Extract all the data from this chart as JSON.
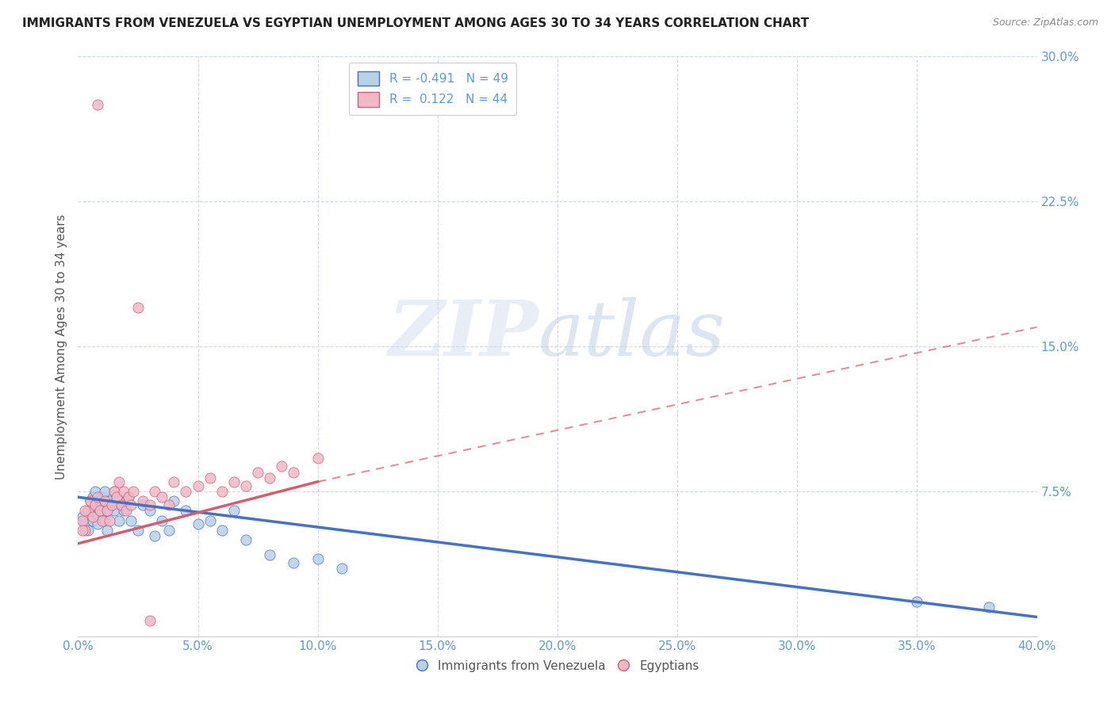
{
  "title": "IMMIGRANTS FROM VENEZUELA VS EGYPTIAN UNEMPLOYMENT AMONG AGES 30 TO 34 YEARS CORRELATION CHART",
  "source": "Source: ZipAtlas.com",
  "ylabel": "Unemployment Among Ages 30 to 34 years",
  "xlabel_ticks": [
    "0.0%",
    "5.0%",
    "10.0%",
    "15.0%",
    "20.0%",
    "25.0%",
    "30.0%",
    "35.0%",
    "40.0%"
  ],
  "xlabel_vals": [
    0.0,
    0.05,
    0.1,
    0.15,
    0.2,
    0.25,
    0.3,
    0.35,
    0.4
  ],
  "ylabel_ticks_right": [
    "7.5%",
    "15.0%",
    "22.5%",
    "30.0%"
  ],
  "ylabel_vals_right": [
    0.075,
    0.15,
    0.225,
    0.3
  ],
  "xlim": [
    0.0,
    0.4
  ],
  "ylim": [
    0.0,
    0.3
  ],
  "legend_blue_r": "-0.491",
  "legend_blue_n": "49",
  "legend_pink_r": "0.122",
  "legend_pink_n": "44",
  "blue_color": "#b8d0e8",
  "pink_color": "#f0b8c8",
  "blue_line_color": "#4472c4",
  "pink_line_color": "#d06070",
  "axis_color": "#5b9bd5",
  "grid_color": "#d0d8e8",
  "blue_scatter_x": [
    0.002,
    0.003,
    0.004,
    0.005,
    0.005,
    0.006,
    0.006,
    0.007,
    0.007,
    0.008,
    0.008,
    0.009,
    0.009,
    0.01,
    0.01,
    0.011,
    0.011,
    0.012,
    0.012,
    0.013,
    0.014,
    0.015,
    0.015,
    0.016,
    0.017,
    0.018,
    0.019,
    0.02,
    0.021,
    0.022,
    0.025,
    0.027,
    0.03,
    0.032,
    0.035,
    0.038,
    0.04,
    0.045,
    0.05,
    0.055,
    0.06,
    0.065,
    0.07,
    0.08,
    0.09,
    0.1,
    0.11,
    0.35,
    0.38
  ],
  "blue_scatter_y": [
    0.062,
    0.058,
    0.055,
    0.065,
    0.07,
    0.072,
    0.06,
    0.068,
    0.075,
    0.063,
    0.058,
    0.07,
    0.065,
    0.072,
    0.068,
    0.075,
    0.06,
    0.065,
    0.055,
    0.07,
    0.068,
    0.075,
    0.065,
    0.072,
    0.06,
    0.068,
    0.065,
    0.07,
    0.072,
    0.06,
    0.055,
    0.068,
    0.065,
    0.052,
    0.06,
    0.055,
    0.07,
    0.065,
    0.058,
    0.06,
    0.055,
    0.065,
    0.05,
    0.042,
    0.038,
    0.04,
    0.035,
    0.018,
    0.015
  ],
  "pink_scatter_x": [
    0.002,
    0.003,
    0.004,
    0.005,
    0.006,
    0.007,
    0.008,
    0.008,
    0.009,
    0.01,
    0.011,
    0.012,
    0.013,
    0.014,
    0.015,
    0.016,
    0.017,
    0.018,
    0.019,
    0.02,
    0.021,
    0.022,
    0.023,
    0.025,
    0.027,
    0.03,
    0.032,
    0.035,
    0.038,
    0.04,
    0.045,
    0.05,
    0.055,
    0.06,
    0.065,
    0.07,
    0.075,
    0.08,
    0.085,
    0.09,
    0.1,
    0.002,
    0.003,
    0.03
  ],
  "pink_scatter_y": [
    0.06,
    0.055,
    0.065,
    0.07,
    0.062,
    0.068,
    0.275,
    0.072,
    0.065,
    0.06,
    0.07,
    0.065,
    0.06,
    0.068,
    0.075,
    0.072,
    0.08,
    0.068,
    0.075,
    0.065,
    0.072,
    0.068,
    0.075,
    0.17,
    0.07,
    0.068,
    0.075,
    0.072,
    0.068,
    0.08,
    0.075,
    0.078,
    0.082,
    0.075,
    0.08,
    0.078,
    0.085,
    0.082,
    0.088,
    0.085,
    0.092,
    0.055,
    0.065,
    0.008
  ],
  "blue_line_x0": 0.0,
  "blue_line_y0": 0.072,
  "blue_line_x1": 0.4,
  "blue_line_y1": 0.01,
  "pink_line_solid_x0": 0.0,
  "pink_line_solid_y0": 0.048,
  "pink_line_solid_x1": 0.1,
  "pink_line_solid_y1": 0.08,
  "pink_line_dash_x0": 0.1,
  "pink_line_dash_y0": 0.08,
  "pink_line_dash_x1": 0.4,
  "pink_line_dash_y1": 0.16
}
